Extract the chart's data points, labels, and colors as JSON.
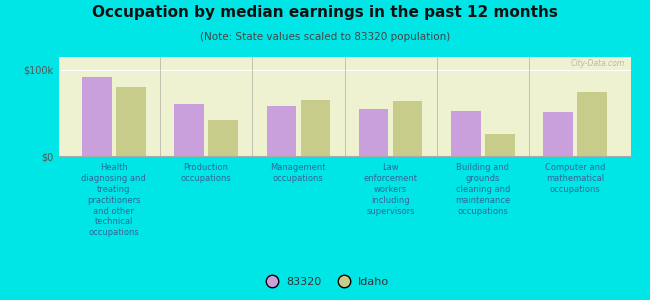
{
  "title": "Occupation by median earnings in the past 12 months",
  "subtitle": "(Note: State values scaled to 83320 population)",
  "categories": [
    "Health\ndiagnosing and\ntreating\npractitioners\nand other\ntechnical\noccupations",
    "Production\noccupations",
    "Management\noccupations",
    "Law\nenforcement\nworkers\nincluding\nsupervisors",
    "Building and\ngrounds\ncleaning and\nmaintenance\noccupations",
    "Computer and\nmathematical\noccupations"
  ],
  "values_83320": [
    92000,
    60000,
    58000,
    55000,
    52000,
    51000
  ],
  "values_idaho": [
    80000,
    42000,
    65000,
    64000,
    25000,
    74000
  ],
  "color_83320": "#c9a0dc",
  "color_idaho": "#c8cc8a",
  "ylim": [
    0,
    115000
  ],
  "yticks": [
    0,
    100000
  ],
  "yticklabels": [
    "$0",
    "$100k"
  ],
  "background_color": "#00e5e5",
  "plot_bg_color": "#eef2d0",
  "legend_label_83320": "83320",
  "legend_label_idaho": "Idaho",
  "watermark": "City-Data.com",
  "label_color": "#336699",
  "title_color": "#111111",
  "subtitle_color": "#444444"
}
